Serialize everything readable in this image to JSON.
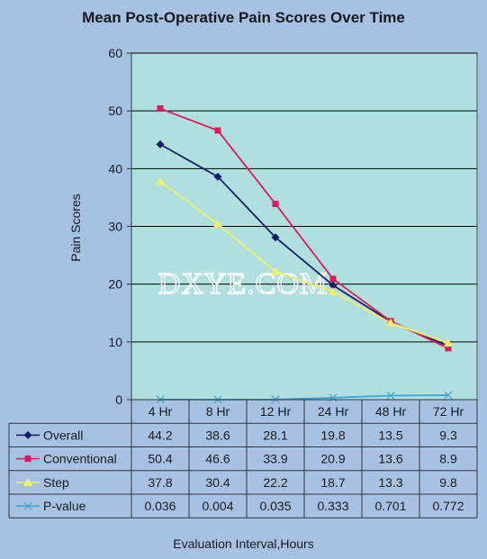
{
  "chart_data": {
    "type": "line",
    "title": "Mean Post-Operative Pain Scores Over Time",
    "xlabel": "Evaluation Interval,Hours",
    "ylabel": "Pain Scores",
    "ylim": [
      0,
      60
    ],
    "yticks": [
      0,
      10,
      20,
      30,
      40,
      50,
      60
    ],
    "categories": [
      "4 Hr",
      "8 Hr",
      "12 Hr",
      "24 Hr",
      "48 Hr",
      "72 Hr"
    ],
    "grid": true,
    "legend_placement": "data table below plot",
    "series": [
      {
        "name": "Overall",
        "values": [
          44.2,
          38.6,
          28.1,
          19.8,
          13.5,
          9.3
        ],
        "labels": [
          "44.2",
          "38.6",
          "28.1",
          "19.8",
          "13.5",
          "9.3"
        ],
        "color": "#1a1a6e",
        "marker": "diamond"
      },
      {
        "name": "Conventional",
        "values": [
          50.4,
          46.6,
          33.9,
          20.9,
          13.6,
          8.9
        ],
        "labels": [
          "50.4",
          "46.6",
          "33.9",
          "20.9",
          "13.6",
          "8.9"
        ],
        "color": "#e0195a",
        "marker": "square"
      },
      {
        "name": "Step",
        "values": [
          37.8,
          30.4,
          22.2,
          18.7,
          13.3,
          9.8
        ],
        "labels": [
          "37.8",
          "30.4",
          "22.2",
          "18.7",
          "13.3",
          "9.8"
        ],
        "color": "#f2ef66",
        "marker": "triangle"
      },
      {
        "name": "P-value",
        "values": [
          0.036,
          0.004,
          0.035,
          0.333,
          0.701,
          0.772
        ],
        "labels": [
          "0.036",
          "0.004",
          "0.035",
          "0.333",
          "0.701",
          "0.772"
        ],
        "color": "#3fa3d6",
        "marker": "x"
      }
    ]
  },
  "watermark": "DXYE.COM",
  "colors": {
    "background": "#a6c1e1",
    "plot_area": "#b0e0dd",
    "gridline": "#000000"
  }
}
